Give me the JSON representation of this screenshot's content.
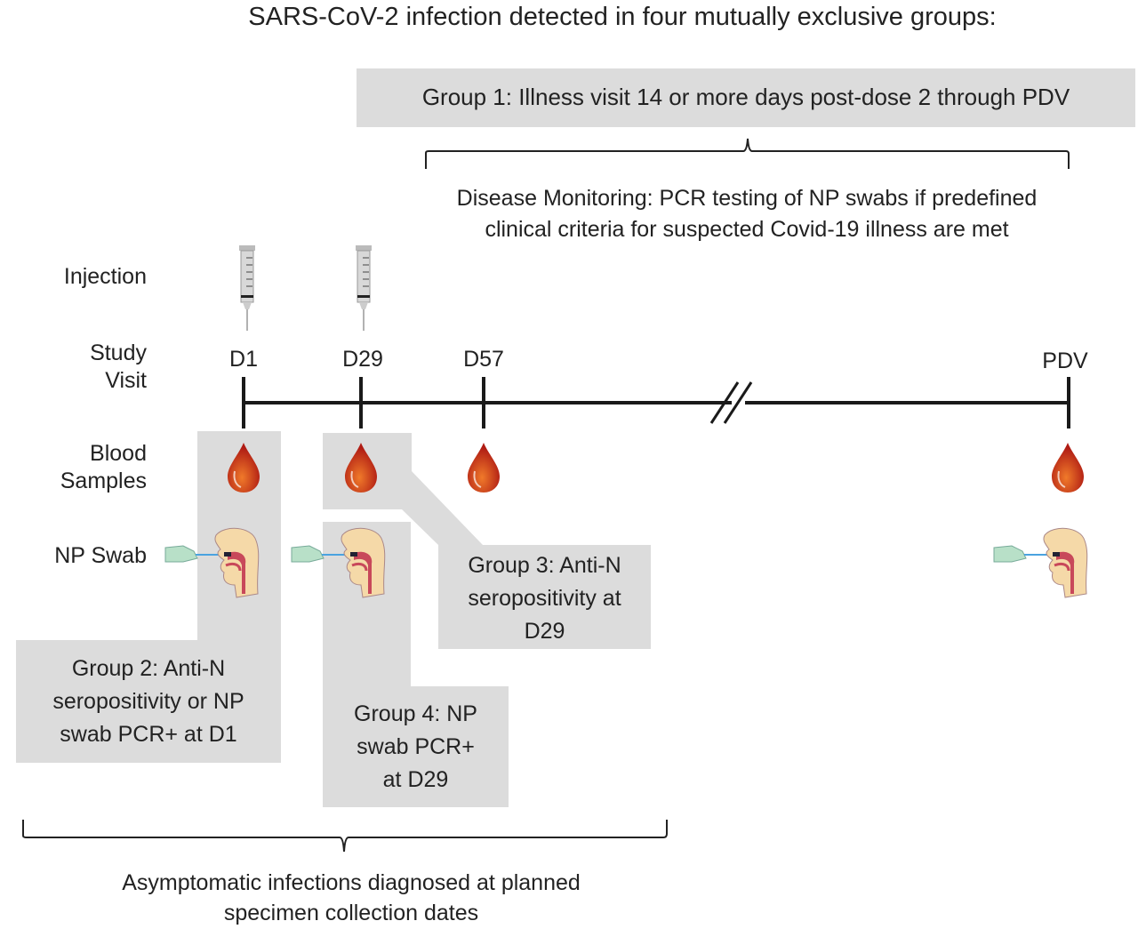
{
  "title": "SARS-CoV-2 infection detected in four mutually exclusive groups:",
  "group1": "Group 1: Illness visit 14 or more days post-dose 2 through PDV",
  "disease_monitoring": [
    "Disease Monitoring: PCR testing of NP swabs if predefined",
    "clinical criteria for suspected Covid-19 illness are met"
  ],
  "row_labels": {
    "injection": "Injection",
    "study_visit": [
      "Study",
      "Visit"
    ],
    "blood_samples": [
      "Blood",
      "Samples"
    ],
    "np_swab": "NP Swab"
  },
  "visits": [
    "D1",
    "D29",
    "D57",
    "PDV"
  ],
  "group2": [
    "Group 2: Anti-N",
    "seropositivity or NP",
    "swab PCR+ at D1"
  ],
  "group3": [
    "Group 3: Anti-N",
    "seropositivity at",
    "D29"
  ],
  "group4": [
    "Group 4: NP",
    "swab PCR+",
    "at D29"
  ],
  "asymptomatic": [
    "Asymptomatic infections diagnosed at planned",
    "specimen collection dates"
  ],
  "colors": {
    "box_gray": "#dcdcdc",
    "blood": "#c0281a",
    "line": "#1a1a1a"
  }
}
